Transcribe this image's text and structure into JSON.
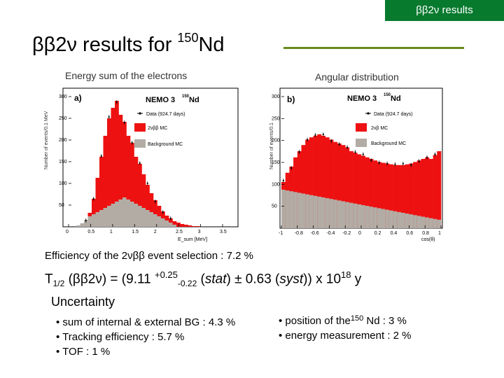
{
  "header_tag": "ββ2ν results",
  "title": {
    "main": "ββ2ν results for ",
    "iso": "150",
    "elem": "Nd"
  },
  "captions": {
    "left": "Energy sum of the electrons",
    "right": "Angular distribution"
  },
  "plots": {
    "experiment": "NEMO 3",
    "iso": "150",
    "elem": "Nd",
    "legend_data": "Data (924.7 days)",
    "legend_bg": "Background MC",
    "legend_mc": "2νββ MC",
    "legend_mc_right": "2νβ MC",
    "ylabel_left": "Number of events/0.1 MeV",
    "ylabel_right": "Number of events/0.1",
    "left": {
      "panel": "a)",
      "xlabel": "E_sum [MeV]",
      "xticks": [
        "0",
        "0.5",
        "1",
        "1.5",
        "2",
        "2.5",
        "3",
        "3.5"
      ],
      "yticks": [
        "50",
        "100",
        "150",
        "200",
        "250",
        "300"
      ]
    },
    "right": {
      "panel": "b)",
      "xlabel": "cos(θ)",
      "xticks": [
        "-1",
        "-0.8",
        "-0.6",
        "-0.4",
        "-0.2",
        "0",
        "0.2",
        "0.4",
        "0.6",
        "0.8",
        "1"
      ],
      "yticks": [
        "50",
        "100",
        "150",
        "200",
        "250",
        "300"
      ]
    },
    "colors": {
      "mc": "#ee1111",
      "bg": "#b3aca5",
      "data": "#000000"
    }
  },
  "efficiency": "Efficiency of the 2νββ event selection : 7.2 %",
  "halflife": {
    "t": "T",
    "sub": "1/2",
    "mid": " (ββ2ν) = (9.11 ",
    "plus": "+0.25",
    "minus": "-0.22",
    "stat": "stat",
    "pm": ") ± 0.63 (",
    "syst": "syst",
    "end": ")) x 10",
    "exp": "18",
    "unit": " y"
  },
  "uncertainty_label": "Uncertainty",
  "uncertainty_left": [
    "sum of internal & external BG : 4.3 %",
    "Tracking efficiency : 5.7 %",
    "TOF : 1 %"
  ],
  "uncertainty_right": {
    "pos_a": "position of the",
    "pos_iso": "150",
    "pos_b": " Nd : 3 %",
    "energy": "energy measurement : 2 %"
  }
}
